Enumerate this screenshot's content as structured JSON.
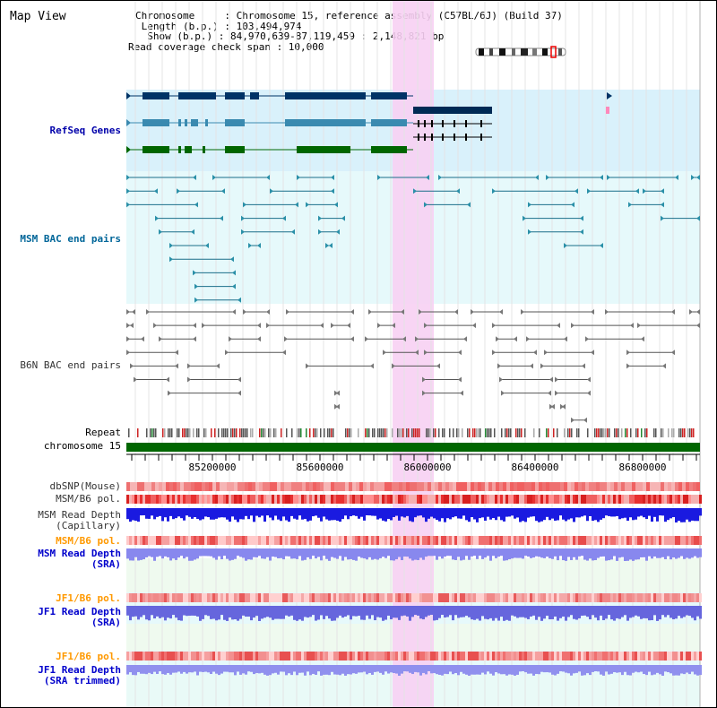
{
  "title": "Map View",
  "info": {
    "chromosome": "Chromosome     : Chromosome 15, reference assembly (C57BL/6J) (Build 37)",
    "length": " Length (b.p.) : 103,494,974",
    "show": "  Show (b.p.) : 84,970,639-87,119,459 : 2,148,821 bp",
    "span": "Read coverage check span : 10,000"
  },
  "tracks": {
    "refseq": "RefSeq Genes",
    "msm_bac": "MSM BAC end pairs",
    "b6n_bac": "B6N BAC end pairs",
    "repeat": "Repeat",
    "chromosome": "chromosome 15",
    "dbsnp": "dbSNP(Mouse)",
    "msm_b6_pol_1": "MSM/B6 pol.",
    "msm_read_depth_cap_1": "MSM Read Depth",
    "msm_read_depth_cap_2": "(Capillary)",
    "msm_b6_pol_2": "MSM/B6 pol.",
    "msm_read_depth_sra_1": "MSM Read Depth",
    "msm_read_depth_sra_2": "(SRA)",
    "jf1_b6_pol_1": "JF1/B6 pol.",
    "jf1_read_depth_sra_1": "JF1 Read Depth",
    "jf1_read_depth_sra_2": "(SRA)",
    "jf1_b6_pol_2": "JF1/B6 pol.",
    "jf1_read_depth_trim_1": "JF1 Read Depth",
    "jf1_read_depth_trim_2": "(SRA trimmed)"
  },
  "axis": {
    "ticks": [
      "85200000",
      "85600000",
      "86000000",
      "86400000",
      "86800000"
    ]
  },
  "colors": {
    "refseq_label": "#0000aa",
    "msm_label": "#006699",
    "b6n_label": "#333333",
    "gold_label": "#ff9900",
    "blue_label": "#0000cc",
    "highlight": "#f5c8f0",
    "chromosome_bar": "#006600"
  }
}
